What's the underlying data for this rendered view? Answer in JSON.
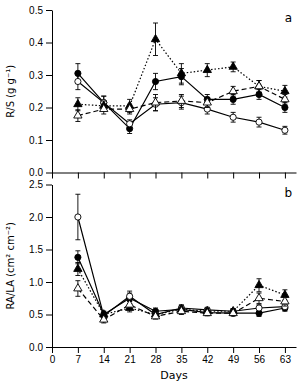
{
  "chart_data": [
    {
      "type": "line",
      "title": "a",
      "x": [
        7,
        14,
        21,
        28,
        35,
        42,
        49,
        56,
        63
      ],
      "xlim": [
        0,
        66
      ],
      "xticks": [
        0,
        7,
        14,
        21,
        28,
        35,
        42,
        49,
        56,
        63
      ],
      "ylabel": "R/S (g g⁻¹)",
      "ylim": [
        0.0,
        0.5
      ],
      "yticks": [
        {
          "value": 0.0,
          "label": "0.0"
        },
        0.1,
        0.2,
        0.3,
        0.4,
        0.5
      ],
      "tick_labels": "y",
      "series": [
        {
          "color": "#000000",
          "marker": "circle",
          "line_style": "solid",
          "values": [
            0.305,
            0.215,
            0.135,
            0.28,
            0.295,
            0.225,
            0.225,
            0.24,
            0.2
          ],
          "errors": [
            0.03,
            0.02,
            0.015,
            0.025,
            0.025,
            0.015,
            0.015,
            0.015,
            0.015
          ]
        },
        {
          "color": "#000000",
          "marker": "circle-open",
          "line_style": "solid",
          "values": [
            0.28,
            0.215,
            0.15,
            0.21,
            0.215,
            0.195,
            0.17,
            0.155,
            0.13
          ],
          "errors": [
            0.025,
            0.02,
            0.012,
            0.02,
            0.02,
            0.015,
            0.015,
            0.015,
            0.012
          ]
        },
        {
          "color": "#000000",
          "marker": "triangle",
          "line_style": "dotted",
          "values": [
            0.21,
            0.205,
            0.205,
            0.41,
            0.305,
            0.315,
            0.325,
            0.265,
            0.25
          ],
          "errors": [
            0.02,
            0.015,
            0.02,
            0.05,
            0.03,
            0.02,
            0.015,
            0.018,
            0.018
          ]
        },
        {
          "color": "#000000",
          "marker": "triangle-open",
          "line_style": "dashed",
          "values": [
            0.175,
            0.195,
            0.195,
            0.215,
            0.22,
            0.215,
            0.25,
            0.265,
            0.225
          ],
          "errors": [
            0.018,
            0.015,
            0.015,
            0.025,
            0.02,
            0.015,
            0.015,
            0.018,
            0.015
          ]
        }
      ]
    },
    {
      "type": "line",
      "title": "b",
      "x": [
        7,
        14,
        21,
        28,
        35,
        42,
        49,
        56,
        63
      ],
      "xlabel": "Days",
      "xlim": [
        0,
        66
      ],
      "xticks": [
        0,
        7,
        14,
        21,
        28,
        35,
        42,
        49,
        56,
        63
      ],
      "ylabel": "RA/LA (cm² cm⁻²)",
      "ylim": [
        0.0,
        2.5
      ],
      "yticks": [
        {
          "value": 0.0,
          "label": "0.0"
        },
        0.5,
        {
          "value": 1.0,
          "label": "1.0"
        },
        1.5,
        {
          "value": 2.0,
          "label": "2.0"
        },
        2.5
      ],
      "series": [
        {
          "color": "#000000",
          "marker": "circle",
          "line_style": "solid",
          "values": [
            1.38,
            0.5,
            0.75,
            0.55,
            0.58,
            0.53,
            0.52,
            0.52,
            0.6
          ],
          "errors": [
            0.1,
            0.05,
            0.08,
            0.05,
            0.05,
            0.04,
            0.04,
            0.05,
            0.05
          ]
        },
        {
          "color": "#000000",
          "marker": "circle-open",
          "line_style": "solid",
          "values": [
            2.0,
            0.48,
            0.78,
            0.5,
            0.6,
            0.57,
            0.55,
            0.6,
            0.62
          ],
          "errors": [
            0.35,
            0.05,
            0.08,
            0.05,
            0.05,
            0.04,
            0.04,
            0.05,
            0.05
          ]
        },
        {
          "color": "#000000",
          "marker": "triangle",
          "line_style": "dotted",
          "values": [
            1.2,
            0.5,
            0.6,
            0.5,
            0.58,
            0.55,
            0.55,
            0.95,
            0.8
          ],
          "errors": [
            0.1,
            0.05,
            0.06,
            0.05,
            0.05,
            0.04,
            0.04,
            0.1,
            0.08
          ]
        },
        {
          "color": "#000000",
          "marker": "triangle-open",
          "line_style": "dashed",
          "values": [
            0.9,
            0.42,
            0.65,
            0.47,
            0.55,
            0.52,
            0.52,
            0.75,
            0.7
          ],
          "errors": [
            0.12,
            0.05,
            0.06,
            0.04,
            0.05,
            0.04,
            0.04,
            0.08,
            0.07
          ]
        }
      ]
    }
  ]
}
